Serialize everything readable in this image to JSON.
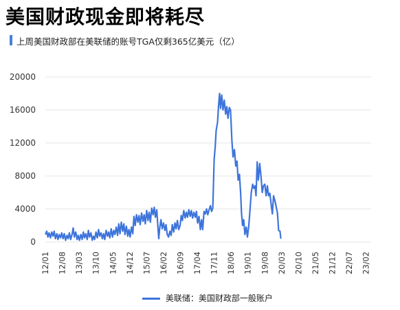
{
  "header": {
    "title": "美国财政现金即将耗尽",
    "subtitle": "上周美国财政部在美联储的账号TGA仅剩365亿美元（亿）"
  },
  "colors": {
    "accent": "#4a7fd8",
    "series": "#3d74db",
    "grid": "#e6e6e6"
  },
  "chart_data": {
    "type": "line",
    "title": "",
    "xlabel": "",
    "ylabel": "",
    "ylim": [
      0,
      20000
    ],
    "yticks": [
      "0",
      "4000",
      "8000",
      "12000",
      "16000",
      "20000"
    ],
    "xticks": [
      "12/01",
      "12/08",
      "13/03",
      "13/10",
      "14/05",
      "14/12",
      "15/07",
      "16/02",
      "16/09",
      "17/04",
      "17/11",
      "18/06",
      "19/01",
      "19/08",
      "20/03",
      "20/10",
      "21/05",
      "21/12",
      "22/07",
      "23/02"
    ],
    "x_range": [
      0,
      19.3
    ],
    "grid": true,
    "legend_position": "bottom",
    "series": [
      {
        "name": "美联储：美国财政部一般账户",
        "points": [
          [
            0.0,
            900
          ],
          [
            0.08,
            1300
          ],
          [
            0.15,
            600
          ],
          [
            0.22,
            1100
          ],
          [
            0.3,
            500
          ],
          [
            0.38,
            1200
          ],
          [
            0.45,
            700
          ],
          [
            0.52,
            1300
          ],
          [
            0.6,
            400
          ],
          [
            0.68,
            1000
          ],
          [
            0.75,
            300
          ],
          [
            0.82,
            900
          ],
          [
            0.9,
            500
          ],
          [
            0.97,
            1100
          ],
          [
            1.05,
            400
          ],
          [
            1.12,
            1000
          ],
          [
            1.2,
            200
          ],
          [
            1.28,
            800
          ],
          [
            1.35,
            400
          ],
          [
            1.42,
            1100
          ],
          [
            1.5,
            300
          ],
          [
            1.58,
            900
          ],
          [
            1.65,
            1700
          ],
          [
            1.72,
            600
          ],
          [
            1.8,
            1200
          ],
          [
            1.88,
            300
          ],
          [
            1.95,
            800
          ],
          [
            2.02,
            200
          ],
          [
            2.1,
            900
          ],
          [
            2.18,
            300
          ],
          [
            2.25,
            1200
          ],
          [
            2.32,
            500
          ],
          [
            2.4,
            1000
          ],
          [
            2.48,
            300
          ],
          [
            2.55,
            1400
          ],
          [
            2.62,
            600
          ],
          [
            2.7,
            1100
          ],
          [
            2.78,
            200
          ],
          [
            2.85,
            700
          ],
          [
            2.92,
            300
          ],
          [
            3.0,
            1200
          ],
          [
            3.08,
            500
          ],
          [
            3.15,
            1500
          ],
          [
            3.22,
            700
          ],
          [
            3.3,
            1100
          ],
          [
            3.38,
            400
          ],
          [
            3.45,
            1000
          ],
          [
            3.52,
            300
          ],
          [
            3.6,
            1400
          ],
          [
            3.68,
            700
          ],
          [
            3.75,
            1200
          ],
          [
            3.82,
            500
          ],
          [
            3.9,
            1600
          ],
          [
            3.98,
            600
          ],
          [
            4.05,
            1400
          ],
          [
            4.12,
            900
          ],
          [
            4.2,
            1800
          ],
          [
            4.28,
            800
          ],
          [
            4.35,
            2200
          ],
          [
            4.42,
            1000
          ],
          [
            4.5,
            2400
          ],
          [
            4.58,
            1300
          ],
          [
            4.65,
            2200
          ],
          [
            4.72,
            900
          ],
          [
            4.8,
            1900
          ],
          [
            4.88,
            700
          ],
          [
            4.95,
            1500
          ],
          [
            5.02,
            600
          ],
          [
            5.1,
            1800
          ],
          [
            5.18,
            1000
          ],
          [
            5.25,
            3100
          ],
          [
            5.32,
            2000
          ],
          [
            5.4,
            3300
          ],
          [
            5.48,
            2400
          ],
          [
            5.55,
            3200
          ],
          [
            5.62,
            2100
          ],
          [
            5.7,
            3500
          ],
          [
            5.78,
            2500
          ],
          [
            5.85,
            3300
          ],
          [
            5.92,
            2200
          ],
          [
            6.0,
            3800
          ],
          [
            6.08,
            2600
          ],
          [
            6.15,
            3600
          ],
          [
            6.22,
            2400
          ],
          [
            6.3,
            4100
          ],
          [
            6.38,
            3300
          ],
          [
            6.45,
            4200
          ],
          [
            6.52,
            3000
          ],
          [
            6.6,
            3900
          ],
          [
            6.68,
            1400
          ],
          [
            6.72,
            400
          ],
          [
            6.78,
            1800
          ],
          [
            6.85,
            2700
          ],
          [
            6.92,
            1600
          ],
          [
            7.0,
            2300
          ],
          [
            7.08,
            1400
          ],
          [
            7.15,
            2100
          ],
          [
            7.22,
            900
          ],
          [
            7.3,
            600
          ],
          [
            7.38,
            1300
          ],
          [
            7.45,
            800
          ],
          [
            7.52,
            2100
          ],
          [
            7.6,
            1200
          ],
          [
            7.68,
            2300
          ],
          [
            7.75,
            1600
          ],
          [
            7.82,
            2600
          ],
          [
            7.9,
            1500
          ],
          [
            7.98,
            2000
          ],
          [
            8.05,
            3200
          ],
          [
            8.12,
            2600
          ],
          [
            8.2,
            3800
          ],
          [
            8.28,
            2900
          ],
          [
            8.35,
            3600
          ],
          [
            8.42,
            3000
          ],
          [
            8.5,
            3900
          ],
          [
            8.58,
            3100
          ],
          [
            8.65,
            3800
          ],
          [
            8.72,
            2900
          ],
          [
            8.8,
            3600
          ],
          [
            8.88,
            3000
          ],
          [
            8.95,
            3700
          ],
          [
            9.02,
            2300
          ],
          [
            9.1,
            3100
          ],
          [
            9.18,
            1500
          ],
          [
            9.25,
            2700
          ],
          [
            9.32,
            1500
          ],
          [
            9.4,
            3700
          ],
          [
            9.48,
            3400
          ],
          [
            9.55,
            4000
          ],
          [
            9.62,
            3300
          ],
          [
            9.7,
            3900
          ],
          [
            9.78,
            4400
          ],
          [
            9.85,
            3700
          ],
          [
            9.92,
            4100
          ],
          [
            10.0,
            10000
          ],
          [
            10.06,
            11500
          ],
          [
            10.12,
            13500
          ],
          [
            10.2,
            14500
          ],
          [
            10.26,
            16500
          ],
          [
            10.32,
            18000
          ],
          [
            10.38,
            16200
          ],
          [
            10.45,
            17800
          ],
          [
            10.52,
            16000
          ],
          [
            10.6,
            17200
          ],
          [
            10.68,
            15500
          ],
          [
            10.75,
            16400
          ],
          [
            10.82,
            15000
          ],
          [
            10.9,
            16300
          ],
          [
            10.97,
            16000
          ],
          [
            11.05,
            12300
          ],
          [
            11.12,
            10300
          ],
          [
            11.2,
            11200
          ],
          [
            11.28,
            9200
          ],
          [
            11.35,
            9800
          ],
          [
            11.42,
            7500
          ],
          [
            11.5,
            8200
          ],
          [
            11.57,
            5800
          ],
          [
            11.62,
            3500
          ],
          [
            11.68,
            2000
          ],
          [
            11.75,
            2700
          ],
          [
            11.82,
            900
          ],
          [
            11.9,
            1800
          ],
          [
            11.97,
            600
          ],
          [
            12.05,
            1900
          ],
          [
            12.12,
            3800
          ],
          [
            12.2,
            6000
          ],
          [
            12.28,
            7000
          ],
          [
            12.35,
            6500
          ],
          [
            12.42,
            6800
          ],
          [
            12.48,
            5600
          ],
          [
            12.55,
            9700
          ],
          [
            12.62,
            7500
          ],
          [
            12.7,
            9500
          ],
          [
            12.78,
            7800
          ],
          [
            12.85,
            6000
          ],
          [
            12.92,
            6800
          ],
          [
            13.0,
            7000
          ],
          [
            13.08,
            5600
          ],
          [
            13.15,
            6800
          ],
          [
            13.22,
            5600
          ],
          [
            13.3,
            5900
          ],
          [
            13.38,
            4500
          ],
          [
            13.45,
            3400
          ],
          [
            13.52,
            5600
          ],
          [
            13.6,
            5000
          ],
          [
            13.68,
            4200
          ],
          [
            13.75,
            3500
          ],
          [
            13.82,
            1400
          ],
          [
            13.9,
            1300
          ],
          [
            13.95,
            400
          ]
        ]
      }
    ]
  }
}
